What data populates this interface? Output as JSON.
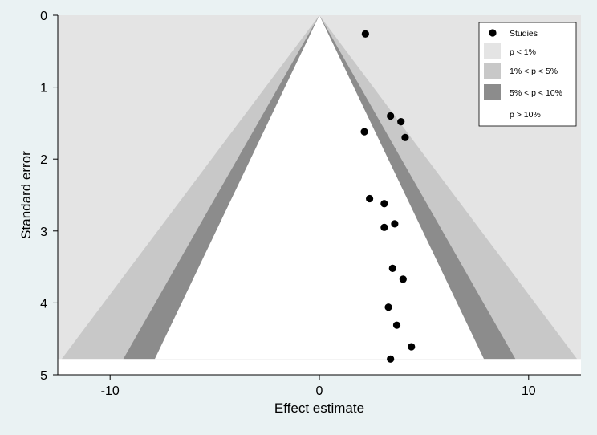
{
  "chart_data": {
    "type": "scatter",
    "subtype": "contour-enhanced funnel plot",
    "xlabel": "Effect estimate",
    "ylabel": "Standard error",
    "xlim": [
      -12.5,
      12.5
    ],
    "ylim": [
      5,
      0
    ],
    "y_reversed": true,
    "x_ticks": [
      -10,
      0,
      10
    ],
    "x_tick_labels": [
      "-10",
      "0",
      "10"
    ],
    "y_ticks": [
      0,
      1,
      2,
      3,
      4,
      5
    ],
    "y_tick_labels": [
      "0",
      "1",
      "2",
      "3",
      "4",
      "5"
    ],
    "contour_se_max": 4.78,
    "contour_z": {
      "p1": 2.576,
      "p5": 1.96,
      "p10": 1.645
    },
    "series": [
      {
        "name": "Studies",
        "points": [
          {
            "x": 2.2,
            "y": 0.26
          },
          {
            "x": 3.4,
            "y": 1.4
          },
          {
            "x": 3.9,
            "y": 1.48
          },
          {
            "x": 2.15,
            "y": 1.62
          },
          {
            "x": 4.1,
            "y": 1.7
          },
          {
            "x": 2.4,
            "y": 2.55
          },
          {
            "x": 3.1,
            "y": 2.62
          },
          {
            "x": 3.6,
            "y": 2.9
          },
          {
            "x": 3.1,
            "y": 2.95
          },
          {
            "x": 3.5,
            "y": 3.52
          },
          {
            "x": 4.0,
            "y": 3.67
          },
          {
            "x": 3.3,
            "y": 4.06
          },
          {
            "x": 3.7,
            "y": 4.31
          },
          {
            "x": 4.4,
            "y": 4.61
          },
          {
            "x": 3.4,
            "y": 4.78
          }
        ]
      }
    ],
    "legend": {
      "position": "top-right",
      "entries": [
        {
          "label": "Studies",
          "kind": "marker",
          "color": "#000000"
        },
        {
          "label": "p < 1%",
          "kind": "area",
          "color": "#e4e4e4"
        },
        {
          "label": "1% < p < 5%",
          "kind": "area",
          "color": "#c8c8c8"
        },
        {
          "label": "5% < p < 10%",
          "kind": "area",
          "color": "#8c8c8c"
        },
        {
          "label": "p > 10%",
          "kind": "area",
          "color": "#ffffff"
        }
      ]
    },
    "colors": {
      "background": "#eaf2f3",
      "plot_background": "#e4e4e4",
      "region_p1": "#e4e4e4",
      "region_p5": "#c8c8c8",
      "region_p10": "#8c8c8c",
      "region_ns": "#ffffff",
      "marker": "#000000"
    }
  }
}
